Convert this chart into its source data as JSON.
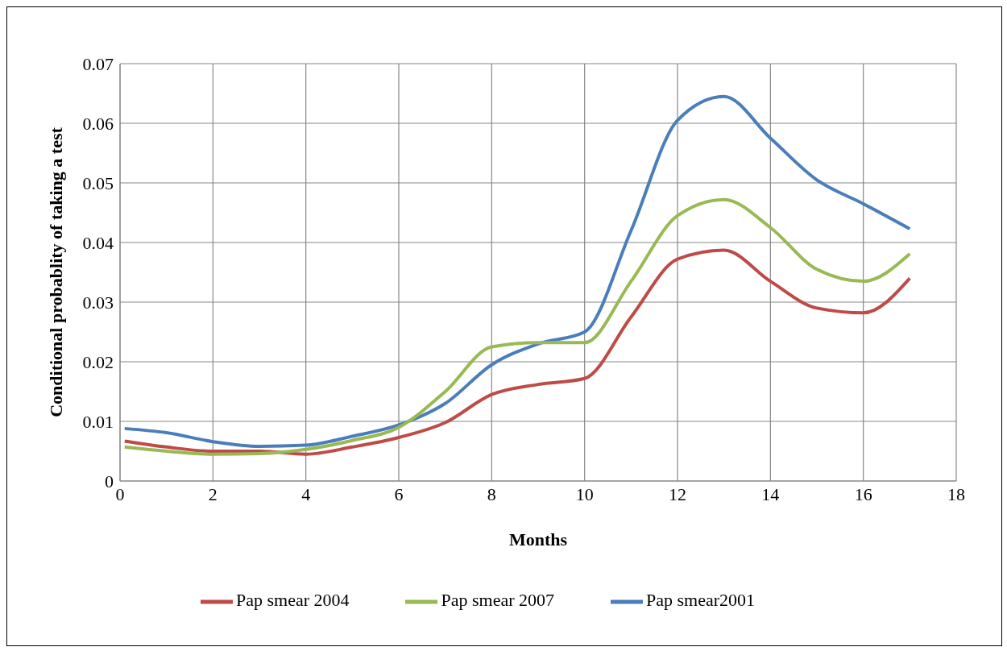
{
  "chart_data": {
    "type": "line",
    "xlabel": "Months",
    "ylabel": "Conditional probablity of taking a test",
    "x": [
      0.1,
      1,
      2,
      3,
      4,
      5,
      6,
      7,
      8,
      9,
      10,
      11,
      12,
      13,
      14,
      15,
      16,
      17
    ],
    "series": [
      {
        "name": "Pap smear2001",
        "color": "#4a7ebb",
        "values": [
          0.0088,
          0.0081,
          0.0066,
          0.0058,
          0.006,
          0.0075,
          0.0094,
          0.013,
          0.0195,
          0.023,
          0.025,
          0.042,
          0.0605,
          0.0645,
          0.0575,
          0.0505,
          0.0465,
          0.0423
        ]
      },
      {
        "name": "Pap smear 2004",
        "color": "#be4b48",
        "values": [
          0.0067,
          0.0057,
          0.005,
          0.005,
          0.0045,
          0.0057,
          0.0073,
          0.0098,
          0.0145,
          0.0162,
          0.0172,
          0.0275,
          0.0372,
          0.0387,
          0.0335,
          0.029,
          0.0282,
          0.034
        ]
      },
      {
        "name": "Pap smear 2007",
        "color": "#98b954",
        "values": [
          0.0057,
          0.005,
          0.0045,
          0.0046,
          0.0053,
          0.0068,
          0.009,
          0.015,
          0.0225,
          0.0232,
          0.0232,
          0.0335,
          0.0445,
          0.0472,
          0.0425,
          0.0355,
          0.0335,
          0.0381
        ]
      }
    ],
    "xlim": [
      0,
      18
    ],
    "xticks": [
      0,
      2,
      4,
      6,
      8,
      10,
      12,
      14,
      16,
      18
    ],
    "ylim": [
      0,
      0.07
    ],
    "yticks": [
      0,
      0.01,
      0.02,
      0.03,
      0.04,
      0.05,
      0.06,
      0.07
    ],
    "grid": true,
    "legend": "bottom",
    "marker": "none",
    "line_style": "solid"
  }
}
